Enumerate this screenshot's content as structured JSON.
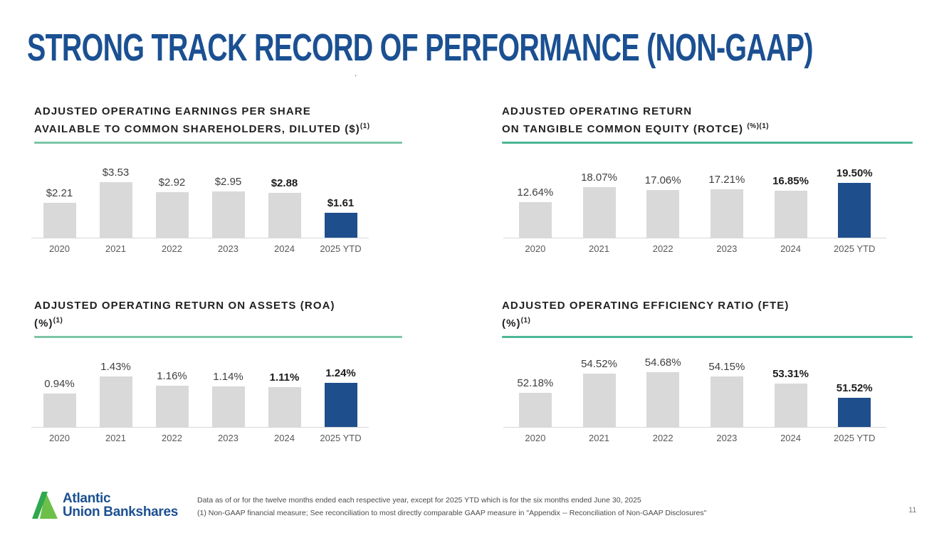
{
  "slide": {
    "title": "STRONG TRACK RECORD OF PERFORMANCE (NON-GAAP)",
    "stray_mark": ".",
    "page_number": "11"
  },
  "colors": {
    "title_blue": "#1B5092",
    "bar_gray": "#D9D9D9",
    "bar_blue": "#1F4E8C",
    "divider_teal": "#4CB696",
    "logo_green_dark": "#2FA84F",
    "logo_green_light": "#6CC04A"
  },
  "logo": {
    "mark_icon": "atlantic-union-a-mark-icon",
    "line1": "Atlantic",
    "line2": "Union Bankshares"
  },
  "footnotes": {
    "line1": "Data as of or for the twelve months ended each respective year, except for 2025 YTD which is for the six months ended June 30, 2025",
    "line2": "(1) Non-GAAP financial measure; See reconciliation to most directly comparable GAAP measure in \"Appendix -- Reconciliation of Non-GAAP Disclosures\""
  },
  "chart_data": [
    {
      "type": "bar",
      "title": "ADJUSTED OPERATING EARNINGS PER SHARE AVAILABLE TO COMMON SHAREHOLDERS, DILUTED ($)(1)",
      "title_line1": "ADJUSTED OPERATING EARNINGS PER SHARE",
      "title_line2": "AVAILABLE TO COMMON SHAREHOLDERS, DILUTED ($)",
      "title_sup": "(1)",
      "categories": [
        "2020",
        "2021",
        "2022",
        "2023",
        "2024",
        "2025 YTD"
      ],
      "values": [
        2.21,
        3.53,
        2.92,
        2.95,
        2.88,
        1.61
      ],
      "value_labels": [
        "$2.21",
        "$3.53",
        "$2.92",
        "$2.95",
        "$2.88",
        "$1.61"
      ],
      "ylim": [
        0,
        5
      ],
      "highlight_index": 5,
      "bold_value_indices": [
        4,
        5
      ],
      "xlabel": "",
      "ylabel": "",
      "grid": false,
      "legend": "none"
    },
    {
      "type": "bar",
      "title": "ADJUSTED OPERATING RETURN ON TANGIBLE COMMON EQUITY (ROTCE) (%)(1)",
      "title_line1": "ADJUSTED OPERATING RETURN",
      "title_line2": "ON TANGIBLE COMMON EQUITY (ROTCE) ",
      "title_sup": "(%)(1)",
      "categories": [
        "2020",
        "2021",
        "2022",
        "2023",
        "2024",
        "2025 YTD"
      ],
      "values": [
        12.64,
        18.07,
        17.06,
        17.21,
        16.85,
        19.5
      ],
      "value_labels": [
        "12.64%",
        "18.07%",
        "17.06%",
        "17.21%",
        "16.85%",
        "19.50%"
      ],
      "ylim": [
        0,
        28
      ],
      "highlight_index": 5,
      "bold_value_indices": [
        4,
        5
      ],
      "xlabel": "",
      "ylabel": "",
      "grid": false,
      "legend": "none"
    },
    {
      "type": "bar",
      "title": "ADJUSTED OPERATING RETURN ON ASSETS (ROA) (%)(1)",
      "title_line1": "ADJUSTED OPERATING RETURN ON ASSETS (ROA)",
      "title_line2": "(%)",
      "title_sup": "(1)",
      "categories": [
        "2020",
        "2021",
        "2022",
        "2023",
        "2024",
        "2025 YTD"
      ],
      "values": [
        0.94,
        1.43,
        1.16,
        1.14,
        1.11,
        1.24
      ],
      "value_labels": [
        "0.94%",
        "1.43%",
        "1.16%",
        "1.14%",
        "1.11%",
        "1.24%"
      ],
      "ylim": [
        0,
        2.2
      ],
      "highlight_index": 5,
      "bold_value_indices": [
        4,
        5
      ],
      "xlabel": "",
      "ylabel": "",
      "grid": false,
      "legend": "none"
    },
    {
      "type": "bar",
      "title": "ADJUSTED OPERATING EFFICIENCY RATIO (FTE) (%)(1)",
      "title_line1": "ADJUSTED OPERATING EFFICIENCY RATIO (FTE)",
      "title_line2": "(%)",
      "title_sup": "(1)",
      "categories": [
        "2020",
        "2021",
        "2022",
        "2023",
        "2024",
        "2025 YTD"
      ],
      "values": [
        52.18,
        54.52,
        54.68,
        54.15,
        53.31,
        51.52
      ],
      "value_labels": [
        "52.18%",
        "54.52%",
        "54.68%",
        "54.15%",
        "53.31%",
        "51.52%"
      ],
      "ylim": [
        48,
        57.5
      ],
      "highlight_index": 5,
      "bold_value_indices": [
        4,
        5
      ],
      "xlabel": "",
      "ylabel": "",
      "grid": false,
      "legend": "none"
    }
  ]
}
